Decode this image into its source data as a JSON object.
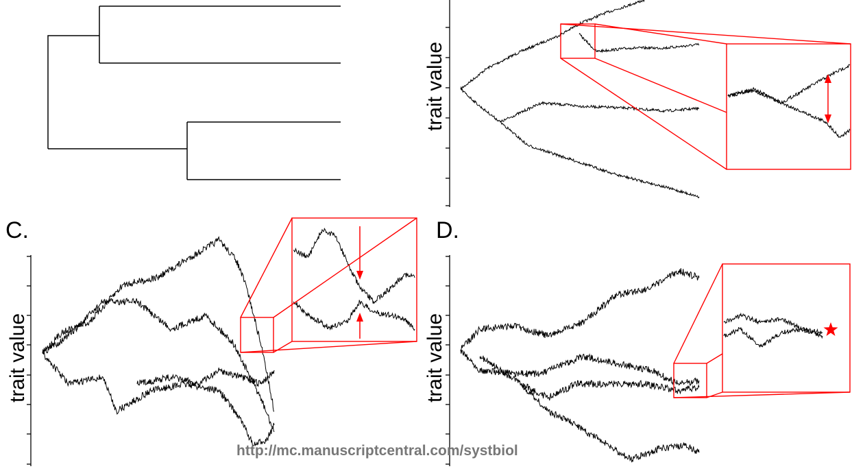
{
  "panels": {
    "c": {
      "label": "C."
    },
    "d": {
      "label": "D."
    }
  },
  "axis": {
    "ylabel": "trait value"
  },
  "watermark": "http://mc.manuscriptcentral.com/systbiol",
  "colors": {
    "trace": "#000000",
    "highlight": "#ff0000"
  },
  "icons": {
    "marker": "star-icon",
    "arrows": "arrow-icon"
  }
}
